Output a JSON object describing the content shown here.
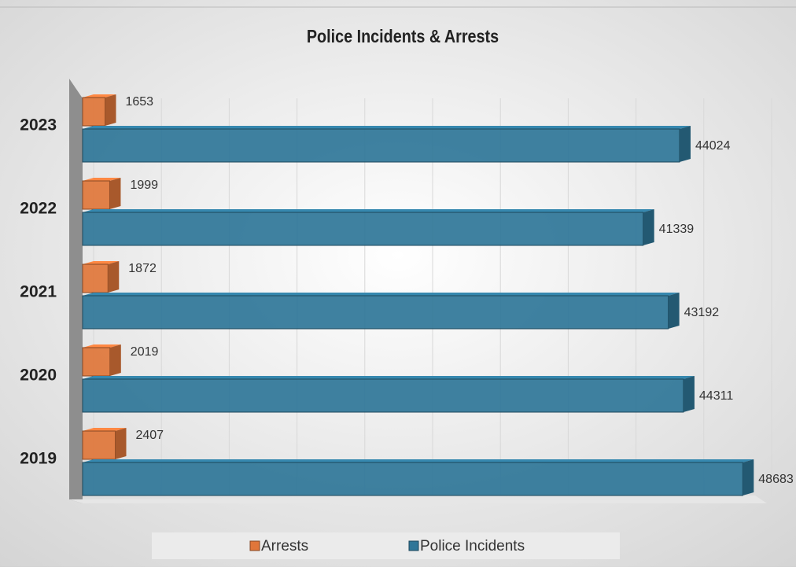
{
  "chart_data": {
    "type": "bar3d-horizontal",
    "title": "Police Incidents & Arrests",
    "categories": [
      "2019",
      "2020",
      "2021",
      "2022",
      "2023"
    ],
    "series": [
      {
        "name": "Arrests",
        "color": "#e0763a",
        "values": [
          2407,
          2019,
          1872,
          1999,
          1653
        ]
      },
      {
        "name": "Police Incidents",
        "color": "#2f7698",
        "values": [
          48683,
          44311,
          43192,
          41339,
          44024
        ]
      }
    ],
    "xlim": [
      0,
      50000
    ],
    "xticks": [
      0,
      5000,
      10000,
      15000,
      20000,
      25000,
      30000,
      35000,
      40000,
      45000,
      50000
    ],
    "grid": true,
    "legend": "bottom"
  }
}
